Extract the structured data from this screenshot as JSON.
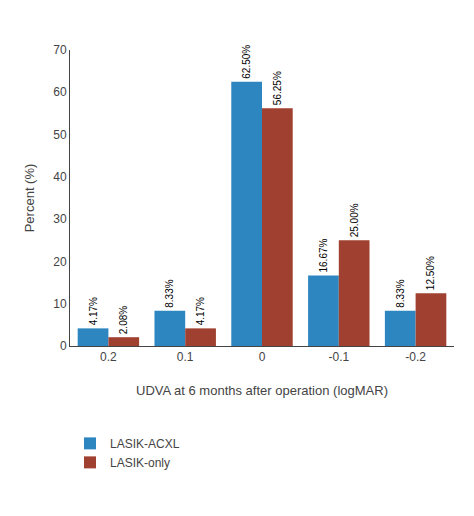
{
  "chart_data": {
    "type": "bar",
    "categories": [
      "0.2",
      "0.1",
      "0",
      "-0.1",
      "-0.2"
    ],
    "series": [
      {
        "name": "LASIK-ACXL",
        "color": "#2e86c1",
        "values": [
          4.17,
          8.33,
          62.5,
          16.67,
          8.33
        ],
        "value_labels": [
          "4.17%",
          "8.33%",
          "62.50%",
          "16.67%",
          "8.33%"
        ]
      },
      {
        "name": "LASIK-only",
        "color": "#a04030",
        "values": [
          2.08,
          4.17,
          56.25,
          25.0,
          12.5
        ],
        "value_labels": [
          "2.08%",
          "4.17%",
          "56.25%",
          "25.00%",
          "12.50%"
        ]
      }
    ],
    "xlabel": "UDVA at 6 months after operation (logMAR)",
    "ylabel": "Percent (%)",
    "ylim": [
      0,
      70
    ],
    "yticks": [
      0,
      10,
      20,
      30,
      40,
      50,
      60,
      70
    ],
    "grid": false,
    "legend": "bottom",
    "data_labels": true
  }
}
